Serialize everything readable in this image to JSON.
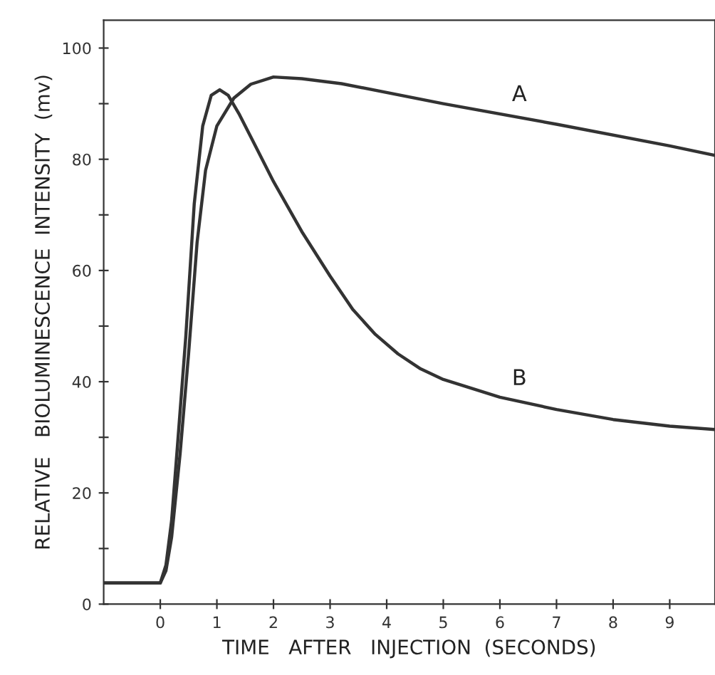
{
  "chart_data": {
    "type": "line",
    "xlabel": "TIME   AFTER   INJECTION  (SECONDS)",
    "ylabel": "RELATIVE   BIOLUMINESCENCE  INTENSITY  (mv)",
    "xlim": [
      -1,
      9.8
    ],
    "ylim": [
      0,
      105
    ],
    "xticks": [
      0,
      1,
      2,
      3,
      4,
      5,
      6,
      7,
      8,
      9
    ],
    "yticks": [
      0,
      {
        "value": 10,
        "label": null
      },
      20,
      {
        "value": 30,
        "label": null
      },
      40,
      {
        "value": 50,
        "label": null
      },
      60,
      {
        "value": 70,
        "label": null
      },
      80,
      {
        "value": 90,
        "label": null
      },
      100
    ],
    "grid": false,
    "marker": "none",
    "line_style": "solid",
    "series": [
      {
        "name": "A",
        "color": "#333333",
        "x": [
          -1,
          0,
          0.1,
          0.2,
          0.35,
          0.5,
          0.65,
          0.8,
          1.0,
          1.3,
          1.6,
          2.0,
          2.5,
          3.2,
          5,
          7,
          9,
          9.8
        ],
        "values": [
          3.8,
          3.8,
          6,
          12,
          27,
          45,
          65,
          78,
          86,
          91,
          93.5,
          94.8,
          94.5,
          93.6,
          90,
          86.3,
          82.4,
          80.7
        ]
      },
      {
        "name": "B",
        "color": "#333333",
        "x": [
          -1,
          0,
          0.1,
          0.2,
          0.3,
          0.45,
          0.6,
          0.75,
          0.9,
          1.05,
          1.2,
          1.4,
          1.7,
          2,
          2.5,
          3,
          3.4,
          3.8,
          4.2,
          4.6,
          5,
          6,
          7,
          8,
          9,
          9.8
        ],
        "values": [
          3.8,
          3.8,
          7,
          15,
          28,
          48,
          72,
          86,
          91.5,
          92.5,
          91.5,
          88,
          82,
          76,
          67,
          59,
          53,
          48.5,
          45,
          42.3,
          40.4,
          37.2,
          35,
          33.2,
          32,
          31.4
        ]
      }
    ]
  }
}
